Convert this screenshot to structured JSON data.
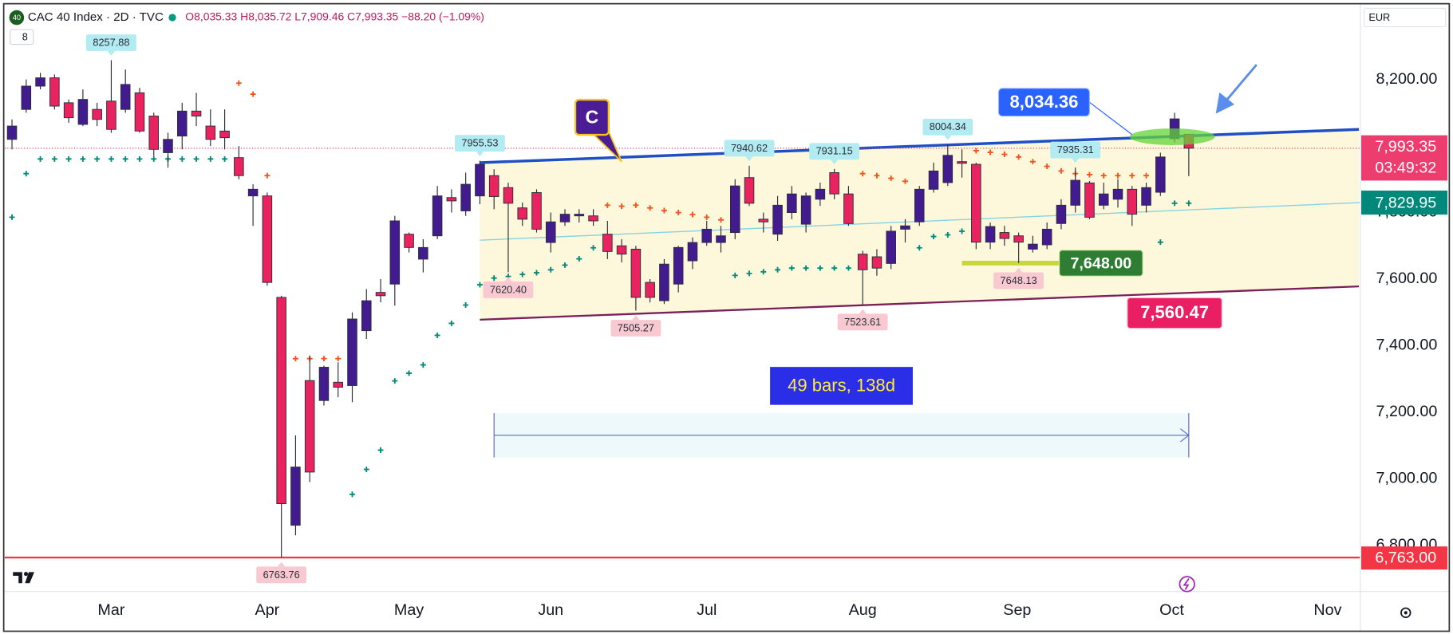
{
  "header": {
    "badge": "40",
    "symbol": "CAC 40 Index · 2D · TVC",
    "ohlc": "O8,035.33 H8,035.72 L7,909.46 C7,993.35 −88.20 (−1.09%)",
    "indicators": "8",
    "currency": "EUR"
  },
  "chart_data": {
    "type": "candlestick",
    "up_color": "#421c8f",
    "down_color": "#e8235f",
    "open": [
      8020,
      8110,
      8180,
      8205,
      8130,
      8065,
      8110,
      8135,
      8110,
      8160,
      8090,
      7980,
      8030,
      8105,
      8060,
      8045,
      7965,
      7850,
      7850,
      7545,
      6860,
      7295,
      7235,
      7290,
      7280,
      7445,
      7560,
      7585,
      7735,
      7660,
      7730,
      7845,
      7805,
      7850,
      7911,
      7875,
      7814,
      7860,
      7710,
      7772,
      7790,
      7790,
      7735,
      7700,
      7690,
      7590,
      7535,
      7585,
      7655,
      7710,
      7710,
      7740,
      7905,
      7780,
      7735,
      7800,
      7765,
      7840,
      7920,
      7856,
      7675,
      7667,
      7647,
      7750,
      7772,
      7870,
      7890,
      7953,
      7945,
      7711,
      7740,
      7730,
      7690,
      7703,
      7767,
      7822,
      7889,
      7822,
      7840,
      7870,
      7822,
      7861,
      8022,
      8035.33
    ],
    "high": [
      8080,
      8200,
      8220,
      8215,
      8140,
      8170,
      8130,
      8257.88,
      8230,
      8175,
      8100,
      8040,
      8130,
      8160,
      8110,
      8110,
      8000,
      7885,
      7860,
      7550,
      7130,
      7370,
      7340,
      7350,
      7500,
      7570,
      7600,
      7790,
      7740,
      7720,
      7880,
      7870,
      7920,
      7955.53,
      7930,
      7890,
      7830,
      7870,
      7800,
      7810,
      7810,
      7810,
      7775,
      7720,
      7700,
      7600,
      7660,
      7700,
      7725,
      7775,
      7760,
      7900,
      7940.62,
      7800,
      7850,
      7880,
      7860,
      7890,
      7931.15,
      7880,
      7685,
      7690,
      7760,
      7780,
      7880,
      7950,
      8004.34,
      7990,
      7950,
      7770,
      7760,
      7740,
      7730,
      7770,
      7840,
      7935.31,
      7895,
      7890,
      7900,
      7880,
      7890,
      7980,
      8100,
      8035.72
    ],
    "low": [
      7990,
      8100,
      8170,
      8110,
      8070,
      8060,
      8060,
      8040,
      8100,
      8040,
      7970,
      7935,
      7990,
      8060,
      8000,
      7990,
      7900,
      7760,
      7580,
      6763.76,
      6830,
      6990,
      7220,
      7245,
      7230,
      7420,
      7530,
      7520,
      7680,
      7620,
      7720,
      7800,
      7790,
      7825,
      7810,
      7620.4,
      7760,
      7740,
      7680,
      7760,
      7770,
      7760,
      7660,
      7650,
      7505.27,
      7530,
      7525,
      7560,
      7630,
      7700,
      7680,
      7720,
      7820,
      7740,
      7715,
      7780,
      7740,
      7820,
      7840,
      7760,
      7523.61,
      7610,
      7630,
      7710,
      7760,
      7860,
      7880,
      7905,
      7690,
      7690,
      7700,
      7648.13,
      7680,
      7690,
      7750,
      7800,
      7780,
      7810,
      7815,
      7760,
      7800,
      7850,
      8010,
      7909.46
    ],
    "close": [
      8060,
      8180,
      8205,
      8120,
      8085,
      8140,
      8080,
      8050,
      8185,
      8045,
      7990,
      8020,
      8105,
      8090,
      8020,
      8025,
      7911,
      7870,
      7590,
      6925,
      7035,
      7020,
      7335,
      7275,
      7480,
      7535,
      7550,
      7775,
      7695,
      7695,
      7850,
      7835,
      7885,
      7945,
      7848,
      7828,
      7780,
      7750,
      7772,
      7795,
      7795,
      7775,
      7683,
      7675,
      7545,
      7545,
      7645,
      7695,
      7710,
      7750,
      7730,
      7880,
      7828,
      7772,
      7822,
      7856,
      7850,
      7870,
      7856,
      7767,
      7628,
      7633,
      7744,
      7760,
      7870,
      7925,
      7972,
      7948,
      7711,
      7758,
      7722,
      7711,
      7705,
      7750,
      7822,
      7897,
      7786,
      7856,
      7870,
      7795,
      7875,
      7967,
      8081.55,
      7993.35
    ],
    "sar": {
      "above_color": "#f4511e",
      "below_color": "#00897b",
      "values": [
        7786,
        7917,
        7961,
        7961,
        7961,
        7961,
        7961,
        7961,
        7961,
        7961,
        7961,
        7961,
        7961,
        7961,
        7961,
        7961,
        8189,
        8156,
        7911,
        null,
        7361,
        7361,
        7361,
        7361,
        6953,
        7028,
        7086,
        7294,
        7317,
        7342,
        7431,
        7467,
        7522,
        7583,
        7603,
        7608,
        7614,
        7619,
        7628,
        7642,
        7661,
        7694,
        7822,
        7819,
        7822,
        7814,
        7806,
        7800,
        7794,
        7786,
        7778,
        7611,
        7617,
        7622,
        7628,
        7633,
        7633,
        7633,
        7633,
        7633,
        7917,
        7911,
        7903,
        7894,
        7694,
        7728,
        7733,
        7744,
        7986,
        7981,
        7975,
        7967,
        7953,
        7939,
        7925,
        7917,
        7914,
        7911,
        7911,
        7911,
        7911,
        7711,
        7828,
        7828
      ]
    },
    "pivot_high_color": "#b2ebf2",
    "pivot_low_color": "#f9c9d2",
    "pivot_labels": [
      {
        "x": 7,
        "value": 8257.88,
        "label": "8257.88"
      },
      {
        "x": 19,
        "value": 6763.76,
        "label": "6763.76"
      },
      {
        "x": 33,
        "value": 7955.53,
        "label": "7955.53"
      },
      {
        "x": 35,
        "value": 7620.4,
        "label": "7620.40"
      },
      {
        "x": 44,
        "value": 7505.27,
        "label": "7505.27"
      },
      {
        "x": 52,
        "value": 7940.62,
        "label": "7940.62"
      },
      {
        "x": 58,
        "value": 7931.15,
        "label": "7931.15"
      },
      {
        "x": 60,
        "value": 7523.61,
        "label": "7523.61"
      },
      {
        "x": 66,
        "value": 8004.34,
        "label": "8004.34"
      },
      {
        "x": 71,
        "value": 7648.13,
        "label": "7648.13"
      },
      {
        "x": 75,
        "value": 7935.31,
        "label": "7935.31"
      }
    ],
    "trendlines": [
      {
        "x": [
          33,
          95
        ],
        "values": [
          7950,
          8050
        ],
        "color": "#1f4fc4",
        "width": 3
      },
      {
        "x": [
          33,
          95
        ],
        "values": [
          7478,
          7578
        ],
        "color": "#7b1f5a",
        "width": 2
      },
      {
        "x": [
          33,
          95.1
        ],
        "values": [
          7717,
          7829.95
        ],
        "color": "#86d4e2",
        "width": 1.2,
        "end_label": "7,829.95",
        "label_color": "#00897b"
      }
    ],
    "channel_color": "#fdf8db",
    "last_price": {
      "value": 7993.35,
      "label": "7,993.35",
      "countdown": "03:49:32",
      "color": "#ec3d6e"
    },
    "price_lines": [
      {
        "value": 6763,
        "label": "6,763.00",
        "color": "#f23645"
      }
    ],
    "callouts": [
      {
        "x": 43,
        "value": 7953,
        "label": "C",
        "color": "#4a1d96",
        "border": "#f5c518"
      },
      {
        "x": 79,
        "value": 8034.36,
        "label": "8,034.36",
        "color": "#2962ff",
        "border": "#90b4ff"
      }
    ],
    "support": {
      "x": [
        67,
        74
      ],
      "value": 7648,
      "label": "7,648.00",
      "color": "#2e7d32",
      "line_color": "#c6d83a"
    },
    "target": {
      "x": 82,
      "value": 7560.47,
      "label": "7,560.47",
      "color": "#e91e63"
    },
    "measure": {
      "x": [
        34,
        83
      ],
      "values": [
        7064,
        7197
      ],
      "label": "49 bars, 138d",
      "color": "#2a2ee6",
      "text_color": "#ffeb3b",
      "fill": "#eef9fc",
      "line_color": "#5c6bc0"
    },
    "xlim": [
      -0.52,
      95.1
    ],
    "xticks": [
      {
        "value": 7,
        "label": "Mar"
      },
      {
        "value": 18,
        "label": "Apr"
      },
      {
        "value": 28,
        "label": "May"
      },
      {
        "value": 38,
        "label": "Jun"
      },
      {
        "value": 49,
        "label": "Jul"
      },
      {
        "value": 60,
        "label": "Aug"
      },
      {
        "value": 70.9,
        "label": "Sep"
      },
      {
        "value": 81.8,
        "label": "Oct"
      },
      {
        "value": 92.8,
        "label": "Nov"
      }
    ],
    "ylim": [
      6661,
      8425
    ],
    "yticks": [
      {
        "value": 6800,
        "label": "6,800.00"
      },
      {
        "value": 7000,
        "label": "7,000.00"
      },
      {
        "value": 7200,
        "label": "7,200.00"
      },
      {
        "value": 7400,
        "label": "7,400.00"
      },
      {
        "value": 7600,
        "label": "7,600.00"
      },
      {
        "value": 7800,
        "label": "7,800.00"
      },
      {
        "value": 8000,
        "label": "8,000.00"
      },
      {
        "value": 8200,
        "label": "8,200.00"
      }
    ]
  }
}
